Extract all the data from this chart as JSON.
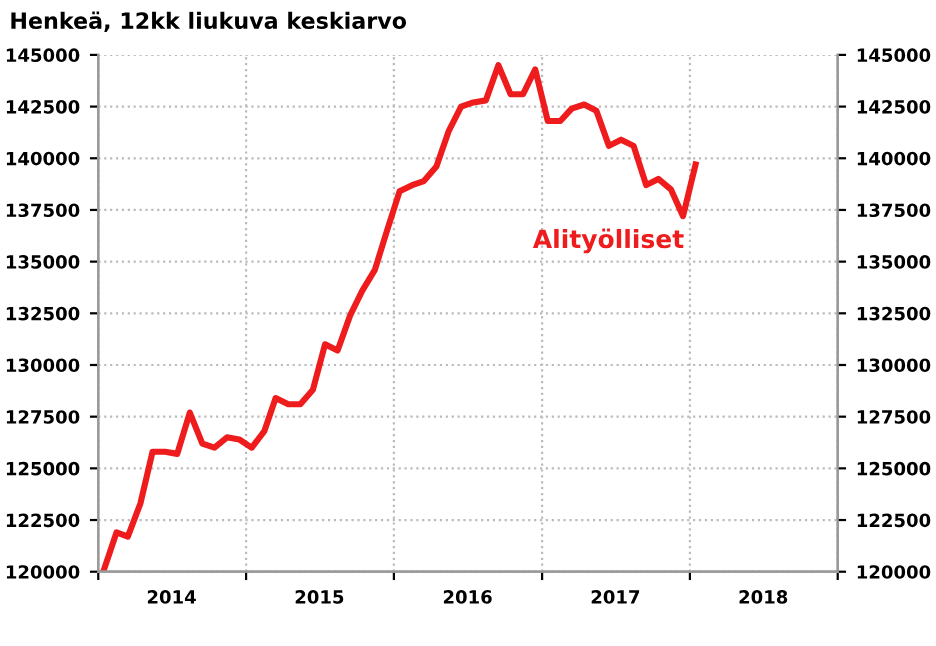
{
  "chart_data": {
    "type": "line",
    "title": "Henkeä, 12kk liukuva keskiarvo",
    "x": [
      "2014-01-15",
      "2014-02-15",
      "2014-03-15",
      "2014-04-15",
      "2014-05-15",
      "2014-06-15",
      "2014-07-15",
      "2014-08-15",
      "2014-09-15",
      "2014-10-15",
      "2014-11-15",
      "2014-12-15",
      "2015-01-15",
      "2015-02-15",
      "2015-03-15",
      "2015-04-15",
      "2015-05-15",
      "2015-06-15",
      "2015-07-15",
      "2015-08-15",
      "2015-09-15",
      "2015-10-15",
      "2015-11-15",
      "2015-12-15",
      "2016-01-15",
      "2016-02-15",
      "2016-03-15",
      "2016-04-15",
      "2016-05-15",
      "2016-06-15",
      "2016-07-15",
      "2016-08-15",
      "2016-09-15",
      "2016-10-15",
      "2016-11-15",
      "2016-12-15",
      "2017-01-15",
      "2017-02-15",
      "2017-03-15",
      "2017-04-15",
      "2017-05-15",
      "2017-06-15",
      "2017-07-15",
      "2017-08-15",
      "2017-09-15",
      "2017-10-15",
      "2017-11-15",
      "2017-12-15",
      "2018-01-15"
    ],
    "series": [
      {
        "name": "Alityölliset",
        "color": "#ee1c1c",
        "values": [
          120100,
          121900,
          121700,
          123300,
          125800,
          125800,
          125700,
          127700,
          126200,
          126000,
          126500,
          126400,
          126000,
          126800,
          128400,
          128100,
          128100,
          128800,
          131000,
          130700,
          132400,
          133600,
          134600,
          136500,
          138400,
          138700,
          138900,
          139600,
          141300,
          142500,
          142700,
          142800,
          144500,
          143100,
          143100,
          144300,
          141800,
          141800,
          142400,
          142600,
          142300,
          140600,
          140900,
          140600,
          138700,
          139000,
          138500,
          137200,
          139700
        ]
      }
    ],
    "xlim": [
      "2014-01-01",
      "2019-01-01"
    ],
    "xticks": [
      {
        "value": "2014-01-01",
        "label": null
      },
      {
        "value": "2014-07-01",
        "label": "2014"
      },
      {
        "value": "2015-01-01",
        "label": null
      },
      {
        "value": "2015-07-01",
        "label": "2015"
      },
      {
        "value": "2016-01-01",
        "label": null
      },
      {
        "value": "2016-07-01",
        "label": "2016"
      },
      {
        "value": "2017-01-01",
        "label": null
      },
      {
        "value": "2017-07-01",
        "label": "2017"
      },
      {
        "value": "2018-01-01",
        "label": null
      },
      {
        "value": "2018-07-01",
        "label": "2018"
      },
      {
        "value": "2019-01-01",
        "label": null
      }
    ],
    "ylim": [
      120000,
      145000
    ],
    "yticks": [
      120000,
      122500,
      125000,
      127500,
      130000,
      132500,
      135000,
      137500,
      140000,
      142500,
      145000
    ],
    "y2lim": [
      120000,
      145000
    ],
    "y2ticks": [
      120000,
      122500,
      125000,
      127500,
      130000,
      132500,
      135000,
      137500,
      140000,
      142500,
      145000
    ],
    "grid": true,
    "legend": false,
    "marker": "none",
    "line_style": "solid"
  }
}
